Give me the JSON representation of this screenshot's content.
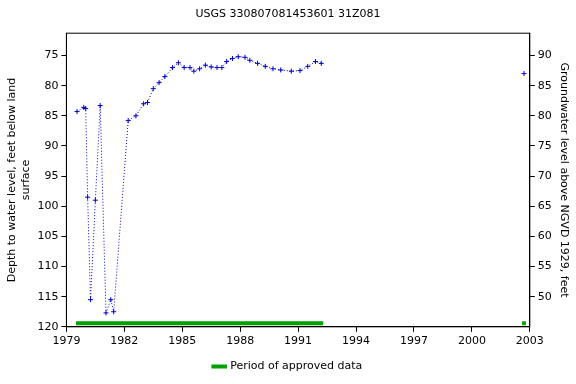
{
  "chart_data": {
    "type": "line",
    "title": "USGS 330807081453601 31Z081",
    "y_label": [
      "Depth to water level, feet below land",
      "surface"
    ],
    "y2_label": "Groundwater level above NGVD 1929, feet",
    "x": [
      1979.55,
      1979.9,
      1980.0,
      1980.1,
      1980.25,
      1980.5,
      1980.75,
      1981.05,
      1981.3,
      1981.45,
      1982.2,
      1982.6,
      1983.0,
      1983.2,
      1983.5,
      1983.8,
      1984.1,
      1984.5,
      1984.8,
      1985.1,
      1985.4,
      1985.6,
      1985.9,
      1986.2,
      1986.5,
      1986.8,
      1987.05,
      1987.3,
      1987.6,
      1987.9,
      1988.25,
      1988.5,
      1988.9,
      1989.3,
      1989.7,
      1990.1,
      1990.65,
      1991.1,
      1991.5,
      1991.9,
      1992.2,
      2002.7
    ],
    "values": [
      84.3,
      83.6,
      83.8,
      98.5,
      115.5,
      99.0,
      83.3,
      117.7,
      115.5,
      117.5,
      85.8,
      85.0,
      83.0,
      82.8,
      80.5,
      79.5,
      78.5,
      77.0,
      76.2,
      77.0,
      77.0,
      77.6,
      77.2,
      76.6,
      76.9,
      77.0,
      77.0,
      76.0,
      75.5,
      75.2,
      75.3,
      75.8,
      76.3,
      76.8,
      77.2,
      77.4,
      77.6,
      77.5,
      76.8,
      76.0,
      76.3,
      78.0
    ],
    "color": "#0000cc",
    "marker": "cross",
    "line_style": "dotted",
    "approved": {
      "name": "Period of approved data",
      "color": "#00a000",
      "ranges": [
        [
          1979.5,
          1992.3
        ],
        [
          2002.6,
          2002.8
        ]
      ]
    },
    "xlim": [
      1979,
      2003
    ],
    "xticks": [
      1979,
      1982,
      1985,
      1988,
      1991,
      1994,
      1997,
      2000,
      2003
    ],
    "ylim": [
      120,
      71.3
    ],
    "yticks": [
      75,
      80,
      85,
      90,
      95,
      100,
      105,
      110,
      115,
      120
    ],
    "y2lim": [
      45,
      93.7
    ],
    "y2ticks": [
      50,
      55,
      60,
      65,
      70,
      75,
      80,
      85,
      90
    ],
    "grid": false,
    "legend": "bottom"
  }
}
